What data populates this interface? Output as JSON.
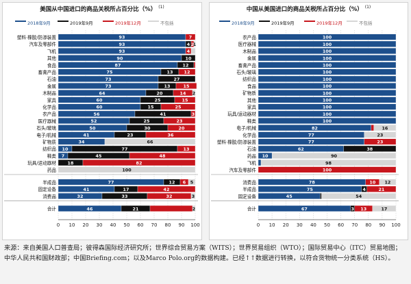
{
  "chart_data": [
    {
      "id": "left",
      "type": "bar",
      "stacked": true,
      "orientation": "horizontal",
      "title": "美国从中国进口的商品关税所占百分比（%）",
      "title_note": "(1)",
      "legend": [
        "2018年9月",
        "2019年9月",
        "2019年12月",
        "不包括"
      ],
      "xlim": [
        0,
        100
      ],
      "xticks": [
        "0",
        "10",
        "20",
        "30",
        "40",
        "50",
        "60",
        "70",
        "80",
        "90",
        "100"
      ],
      "groups": [
        {
          "rows": [
            {
              "label": "塑料·橡胶/防渗装置",
              "values": [
                93,
                0,
                7,
                0
              ],
              "labels": [
                "93",
                "",
                "7",
                ""
              ]
            },
            {
              "label": "汽车及零部件",
              "values": [
                93,
                4,
                2,
                1
              ],
              "labels": [
                "93",
                "4",
                "2",
                "1"
              ]
            },
            {
              "label": "飞机",
              "values": [
                93,
                0,
                4,
                3
              ],
              "labels": [
                "93",
                "",
                "4",
                ""
              ]
            },
            {
              "label": "其他",
              "values": [
                90,
                10,
                0,
                0
              ],
              "labels": [
                "90",
                "10",
                "",
                ""
              ]
            },
            {
              "label": "食品",
              "values": [
                87,
                12,
                1,
                0
              ],
              "labels": [
                "87",
                "12",
                "",
                ""
              ]
            },
            {
              "label": "畜禽产品",
              "values": [
                75,
                13,
                12,
                0
              ],
              "labels": [
                "75",
                "13",
                "12",
                ""
              ]
            },
            {
              "label": "石油",
              "values": [
                73,
                27,
                0,
                0
              ],
              "labels": [
                "73",
                "27",
                "",
                ""
              ]
            },
            {
              "label": "金属",
              "values": [
                73,
                13,
                15,
                0
              ],
              "labels": [
                "73",
                "13",
                "15",
                ""
              ]
            },
            {
              "label": "木制品",
              "values": [
                64,
                20,
                14,
                2
              ],
              "labels": [
                "64",
                "20",
                "14",
                "2"
              ]
            },
            {
              "label": "家具",
              "values": [
                60,
                25,
                15,
                0
              ],
              "labels": [
                "60",
                "25",
                "15",
                ""
              ]
            },
            {
              "label": "化学品",
              "values": [
                60,
                15,
                25,
                0
              ],
              "labels": [
                "60",
                "15",
                "25",
                ""
              ]
            },
            {
              "label": "农产品",
              "values": [
                56,
                41,
                3,
                0
              ],
              "labels": [
                "56",
                "41",
                "3",
                ""
              ]
            },
            {
              "label": "医疗器械",
              "values": [
                52,
                25,
                23,
                0
              ],
              "labels": [
                "52",
                "25",
                "23",
                ""
              ]
            },
            {
              "label": "石头/玻璃",
              "values": [
                50,
                30,
                20,
                0
              ],
              "labels": [
                "50",
                "30",
                "20",
                ""
              ]
            },
            {
              "label": "电子/机械",
              "values": [
                41,
                23,
                36,
                0
              ],
              "labels": [
                "41",
                "23",
                "36",
                ""
              ]
            },
            {
              "label": "矿物质",
              "values": [
                34,
                0,
                0,
                66
              ],
              "labels": [
                "34",
                "",
                "",
                "66"
              ]
            },
            {
              "label": "纺织品",
              "values": [
                10,
                77,
                13,
                0
              ],
              "labels": [
                "10",
                "77",
                "13",
                ""
              ]
            },
            {
              "label": "鞋类",
              "values": [
                7,
                45,
                48,
                0
              ],
              "labels": [
                "7",
                "45",
                "48",
                ""
              ]
            },
            {
              "label": "玩具/运动器材",
              "values": [
                0,
                18,
                82,
                0
              ],
              "labels": [
                "",
                "18",
                "82",
                ""
              ]
            },
            {
              "label": "药品",
              "values": [
                0,
                0,
                0,
                100
              ],
              "labels": [
                "",
                "",
                "",
                "100"
              ]
            }
          ]
        },
        {
          "rows": [
            {
              "label": "半成品",
              "values": [
                77,
                12,
                6,
                5
              ],
              "labels": [
                "77",
                "12",
                "6",
                "5"
              ]
            },
            {
              "label": "固定设备",
              "values": [
                41,
                17,
                42,
                0
              ],
              "labels": [
                "41",
                "17",
                "42",
                ""
              ]
            },
            {
              "label": "消费品",
              "values": [
                32,
                33,
                32,
                3
              ],
              "labels": [
                "32",
                "33",
                "32",
                "3"
              ]
            }
          ]
        },
        {
          "rows": [
            {
              "label": "合计",
              "values": [
                46,
                21,
                31,
                2
              ],
              "labels": [
                "46",
                "21",
                "",
                "2"
              ]
            }
          ]
        }
      ]
    },
    {
      "id": "right",
      "type": "bar",
      "stacked": true,
      "orientation": "horizontal",
      "title": "中国从美国进口的商品关税所占百分比（%）",
      "title_note": "(1)",
      "legend": [
        "2018年9月",
        "2019年9月",
        "2019年12月",
        "不包括"
      ],
      "xlim": [
        0,
        100
      ],
      "xticks": [
        "0",
        "10",
        "20",
        "30",
        "40",
        "50",
        "60",
        "70",
        "80",
        "90",
        "100"
      ],
      "groups": [
        {
          "rows": [
            {
              "label": "农产品",
              "values": [
                100,
                0,
                0,
                0
              ],
              "labels": [
                "100",
                "",
                "",
                ""
              ]
            },
            {
              "label": "医疗器械",
              "values": [
                100,
                0,
                0,
                0
              ],
              "labels": [
                "100",
                "",
                "",
                ""
              ]
            },
            {
              "label": "木制品",
              "values": [
                100,
                0,
                0,
                0
              ],
              "labels": [
                "100",
                "",
                "",
                ""
              ]
            },
            {
              "label": "金属",
              "values": [
                100,
                0,
                0,
                0
              ],
              "labels": [
                "100",
                "",
                "",
                ""
              ]
            },
            {
              "label": "畜禽产品",
              "values": [
                100,
                0,
                0,
                0
              ],
              "labels": [
                "100",
                "",
                "",
                ""
              ]
            },
            {
              "label": "石头/玻璃",
              "values": [
                100,
                0,
                0,
                0
              ],
              "labels": [
                "100",
                "",
                "",
                ""
              ]
            },
            {
              "label": "纺织品",
              "values": [
                100,
                0,
                0,
                0
              ],
              "labels": [
                "100",
                "",
                "",
                ""
              ]
            },
            {
              "label": "食品",
              "values": [
                100,
                0,
                0,
                0
              ],
              "labels": [
                "100",
                "",
                "",
                ""
              ]
            },
            {
              "label": "矿物质",
              "values": [
                100,
                0,
                0,
                0
              ],
              "labels": [
                "100",
                "",
                "",
                ""
              ]
            },
            {
              "label": "其他",
              "values": [
                100,
                0,
                0,
                0
              ],
              "labels": [
                "100",
                "",
                "",
                ""
              ]
            },
            {
              "label": "家具",
              "values": [
                100,
                0,
                0,
                0
              ],
              "labels": [
                "100",
                "",
                "",
                ""
              ]
            },
            {
              "label": "玩具/运动器材",
              "values": [
                100,
                0,
                0,
                0
              ],
              "labels": [
                "100",
                "",
                "",
                ""
              ]
            },
            {
              "label": "鞋类",
              "values": [
                100,
                0,
                0,
                0
              ],
              "labels": [
                "100",
                "",
                "",
                ""
              ]
            },
            {
              "label": "电子/机械",
              "values": [
                82,
                0,
                2,
                16
              ],
              "labels": [
                "82",
                "",
                "",
                "16"
              ]
            },
            {
              "label": "化学品",
              "values": [
                77,
                0,
                0,
                23
              ],
              "labels": [
                "77",
                "",
                "",
                "23"
              ]
            },
            {
              "label": "塑料·橡胶/防渗装置",
              "values": [
                77,
                0,
                23,
                0
              ],
              "labels": [
                "77",
                "",
                "23",
                ""
              ]
            },
            {
              "label": "石油",
              "values": [
                62,
                38,
                0,
                0
              ],
              "labels": [
                "62",
                "38",
                "",
                ""
              ]
            },
            {
              "label": "药品",
              "values": [
                10,
                0,
                0,
                90
              ],
              "labels": [
                "10",
                "",
                "",
                "90"
              ]
            },
            {
              "label": "飞机",
              "values": [
                2,
                0,
                0,
                98
              ],
              "labels": [
                "",
                "",
                "",
                "98"
              ]
            },
            {
              "label": "汽车及零部件",
              "values": [
                0,
                0,
                100,
                0
              ],
              "labels": [
                "",
                "",
                "100",
                ""
              ]
            }
          ]
        },
        {
          "rows": [
            {
              "label": "消费品",
              "values": [
                78,
                0,
                10,
                12
              ],
              "labels": [
                "78",
                "",
                "10",
                "12"
              ]
            },
            {
              "label": "半成品",
              "values": [
                75,
                4,
                21,
                0
              ],
              "labels": [
                "75",
                "4",
                "21",
                ""
              ]
            },
            {
              "label": "固定设备",
              "values": [
                45,
                1,
                0,
                54
              ],
              "labels": [
                "45",
                "",
                "",
                "54"
              ]
            }
          ]
        },
        {
          "rows": [
            {
              "label": "合计",
              "values": [
                67,
                3,
                13,
                17
              ],
              "labels": [
                "67",
                "3",
                "13",
                "17"
              ]
            }
          ]
        }
      ]
    }
  ],
  "colors": {
    "2018年9月": "#1d4f8c",
    "2019年9月": "#111111",
    "2019年12月": "#c8161d",
    "不包括": "#d6d6d6"
  },
  "source_note": "来源：来自美国人口普查局；彼得森国际经济研究所；世界综合贸易方案（WITS）；世界贸易组织（WTO）；国际贸易中心（ITC）贸易地图；中华人民共和国财政部；中国Briefing.com；以及Marco Polo.org的数据构建。已经↑↑数据进行转换，以符合货物统一分类系统（HS）。"
}
